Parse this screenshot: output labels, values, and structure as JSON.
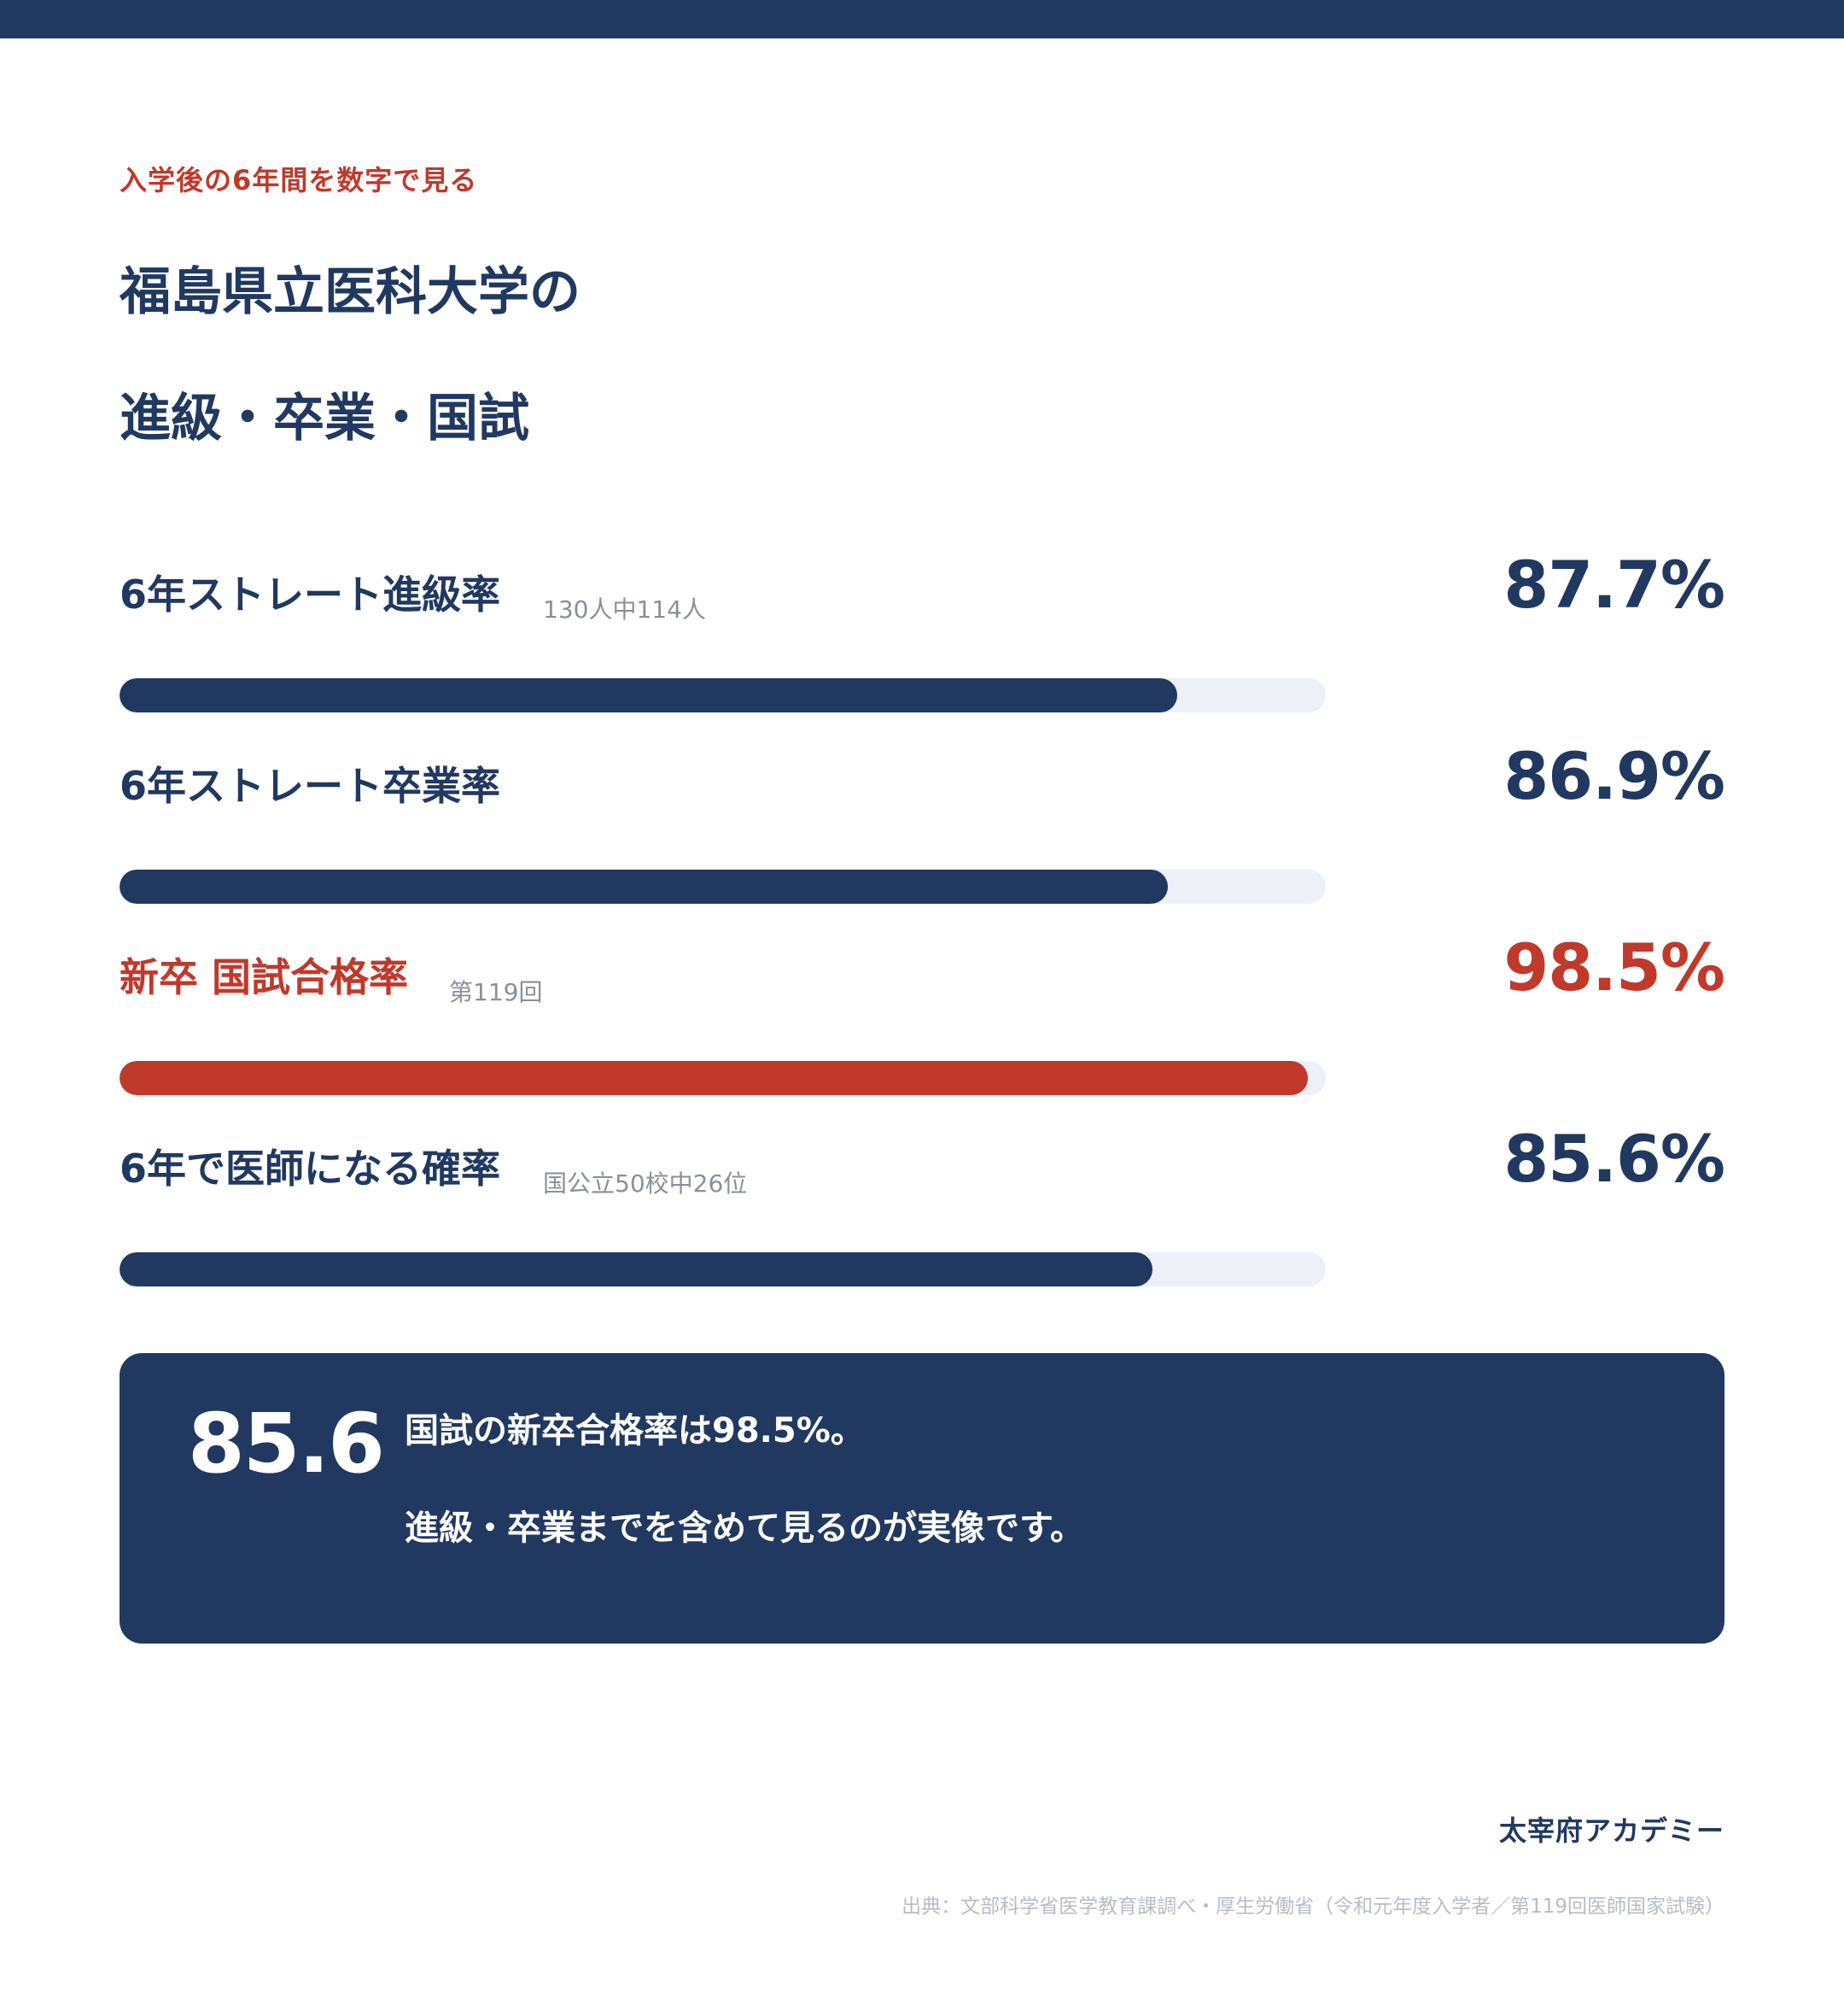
{
  "header": {
    "kicker": "入学後の6年間を数字で見る",
    "title_line1": "福島県立医科大学の",
    "title_line2": "進級・卒業・国試"
  },
  "chart_data": {
    "type": "bar",
    "orientation": "horizontal",
    "xlim": [
      0,
      100
    ],
    "categories": [
      "6年ストレート進級率",
      "6年ストレート卒業率",
      "新卒 国試合格率",
      "6年で医師になる確率"
    ],
    "values": [
      87.7,
      86.9,
      98.5,
      85.6
    ],
    "items": [
      {
        "label": "6年ストレート進級率",
        "note": "130人中114人",
        "value": 87.7,
        "value_label": "87.7%",
        "color": "#213961"
      },
      {
        "label": "6年ストレート卒業率",
        "note": "",
        "value": 86.9,
        "value_label": "86.9%",
        "color": "#213961"
      },
      {
        "label": "新卒 国試合格率",
        "note": "第119回",
        "value": 98.5,
        "value_label": "98.5%",
        "color": "#c0392b"
      },
      {
        "label": "6年で医師になる確率",
        "note": "国公立50校中26位",
        "value": 85.6,
        "value_label": "85.6%",
        "color": "#213961"
      }
    ]
  },
  "callout": {
    "big_number": "85.6",
    "line1": "国試の新卒合格率は98.5%。",
    "line2": "進級・卒業までを含めて見るのが実像です。"
  },
  "footer": {
    "brand": "太宰府アカデミー",
    "source": "出典：文部科学省医学教育課調べ・厚生労働省（令和元年度入学者／第119回医師国家試験）"
  },
  "colors": {
    "navy": "#213961",
    "accent_red": "#c0392b",
    "track": "#edf0f7"
  }
}
